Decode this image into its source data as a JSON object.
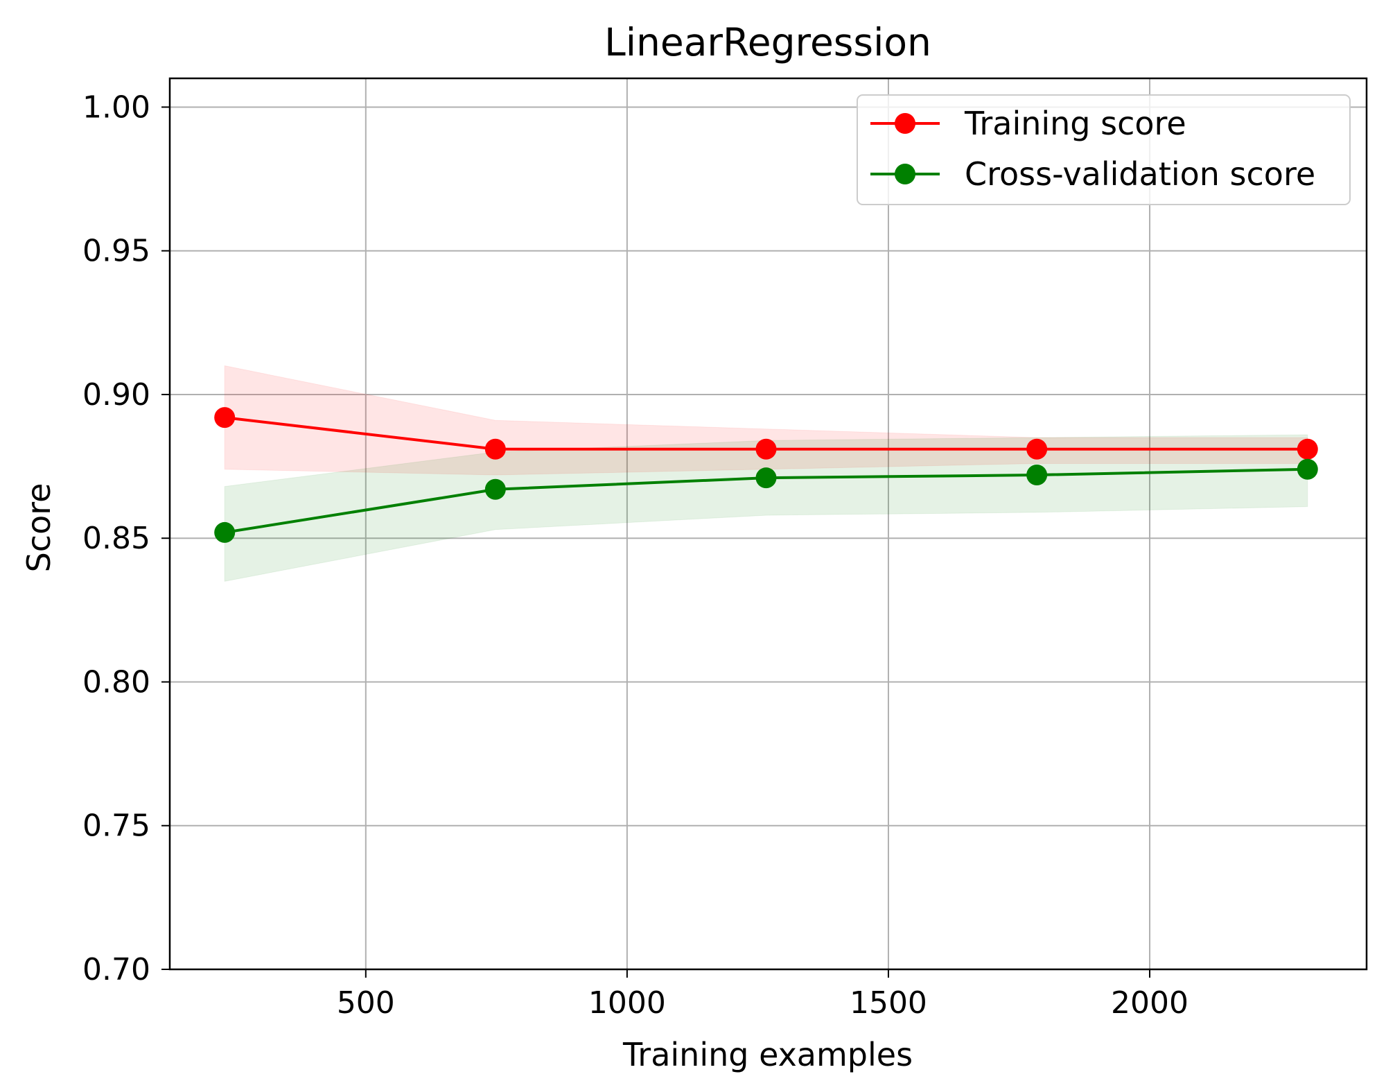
{
  "chart_data": {
    "type": "line",
    "title": "LinearRegression",
    "xlabel": "Training examples",
    "ylabel": "Score",
    "xlim": [
      125,
      2415
    ],
    "ylim": [
      0.7,
      1.01
    ],
    "x_ticks": [
      500,
      1000,
      1500,
      2000
    ],
    "y_ticks": [
      0.7,
      0.75,
      0.8,
      0.85,
      0.9,
      0.95,
      1.0
    ],
    "x_tick_labels": [
      "500",
      "1000",
      "1500",
      "2000"
    ],
    "y_tick_labels": [
      "0.70",
      "0.75",
      "0.80",
      "0.85",
      "0.90",
      "0.95",
      "1.00"
    ],
    "grid": true,
    "legend_position": "top-right",
    "x": [
      230,
      748,
      1266,
      1784,
      2302
    ],
    "series": [
      {
        "name": "Training score",
        "color": "#ff0000",
        "values": [
          0.892,
          0.881,
          0.881,
          0.881,
          0.881
        ],
        "band_lower": [
          0.874,
          0.872,
          0.874,
          0.876,
          0.876
        ],
        "band_upper": [
          0.91,
          0.891,
          0.888,
          0.885,
          0.885
        ]
      },
      {
        "name": "Cross-validation score",
        "color": "#008000",
        "values": [
          0.852,
          0.867,
          0.871,
          0.872,
          0.874
        ],
        "band_lower": [
          0.835,
          0.853,
          0.858,
          0.859,
          0.861
        ],
        "band_upper": [
          0.868,
          0.88,
          0.884,
          0.885,
          0.886
        ]
      }
    ]
  }
}
